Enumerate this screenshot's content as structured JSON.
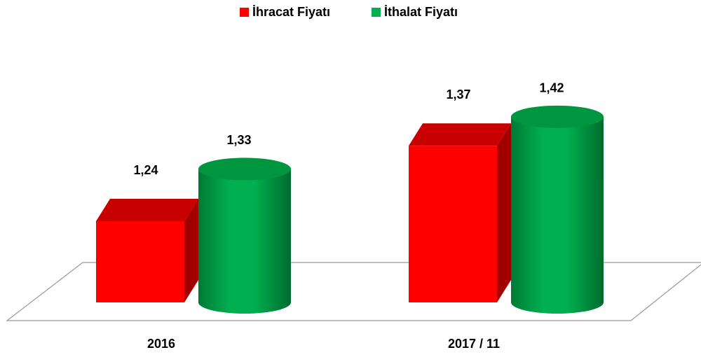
{
  "chart_data": {
    "type": "bar3d",
    "categories": [
      "2016",
      "2017 / 11"
    ],
    "series": [
      {
        "name": "İhracat Fiyatı",
        "color": "#ff0000",
        "values": [
          1.24,
          1.37
        ],
        "value_labels": [
          "1,24",
          "1,37"
        ]
      },
      {
        "name": "İthalat Fiyatı",
        "color": "#00b050",
        "values": [
          1.33,
          1.42
        ],
        "value_labels": [
          "1,33",
          "1,42"
        ]
      }
    ],
    "ylim": [
      1.1,
      1.45
    ],
    "legend": "top"
  }
}
